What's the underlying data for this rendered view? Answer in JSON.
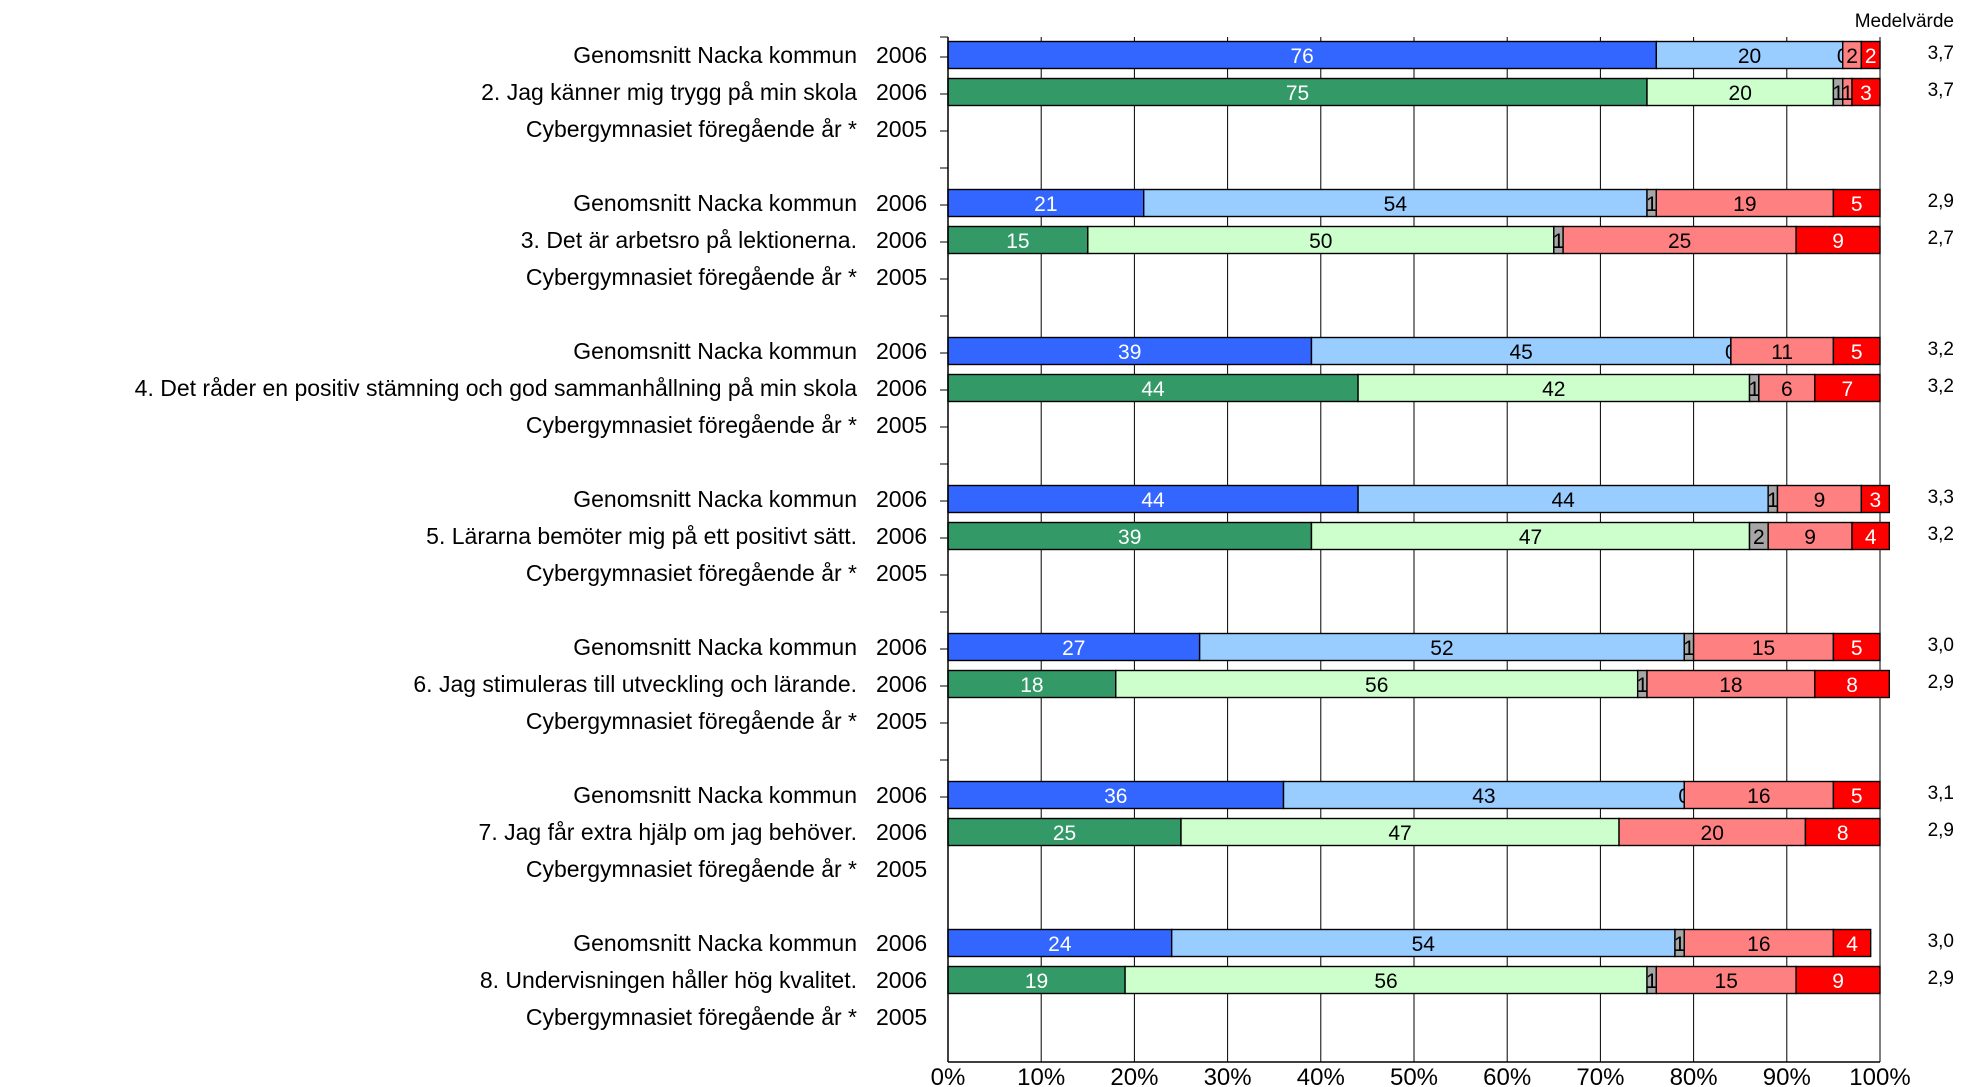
{
  "chart_data": {
    "type": "bar",
    "orientation": "horizontal",
    "stacked": true,
    "mean_header": "Medelvärde",
    "xlim": [
      0,
      100
    ],
    "x_ticks": [
      "0%",
      "10%",
      "20%",
      "30%",
      "40%",
      "50%",
      "60%",
      "70%",
      "80%",
      "90%",
      "100%"
    ],
    "grid": true,
    "colors": {
      "kommun": [
        "#3366ff",
        "#99ccff",
        "#a6a6a6",
        "#ff8080",
        "#ff0000"
      ],
      "school": [
        "#339966",
        "#ccffcc",
        "#a6a6a6",
        "#ff8080",
        "#ff0000"
      ]
    },
    "groups": [
      {
        "rows": [
          {
            "label": "Genomsnitt Nacka kommun",
            "year": "2006",
            "kind": "kommun",
            "values": [
              76,
              20,
              0,
              2,
              2
            ],
            "labels": [
              "76",
              "20",
              "0",
              "2",
              "2"
            ],
            "mean": "3,7"
          },
          {
            "label": "2.  Jag känner mig trygg på min skola",
            "year": "2006",
            "kind": "school",
            "values": [
              75,
              20,
              1,
              1,
              3
            ],
            "labels": [
              "75",
              "20",
              "1",
              "1",
              "3"
            ],
            "mean": "3,7"
          },
          {
            "label": "Cybergymnasiet föregående år *",
            "year": "2005",
            "kind": "school",
            "values": [],
            "labels": [],
            "mean": ""
          }
        ]
      },
      {
        "rows": [
          {
            "label": "Genomsnitt Nacka kommun",
            "year": "2006",
            "kind": "kommun",
            "values": [
              21,
              54,
              1,
              19,
              5
            ],
            "labels": [
              "21",
              "54",
              "1",
              "19",
              "5"
            ],
            "mean": "2,9"
          },
          {
            "label": "3.  Det är arbetsro på lektionerna.",
            "year": "2006",
            "kind": "school",
            "values": [
              15,
              50,
              1,
              25,
              9
            ],
            "labels": [
              "15",
              "50",
              "1",
              "25",
              "9"
            ],
            "mean": "2,7"
          },
          {
            "label": "Cybergymnasiet föregående år *",
            "year": "2005",
            "kind": "school",
            "values": [],
            "labels": [],
            "mean": ""
          }
        ]
      },
      {
        "rows": [
          {
            "label": "Genomsnitt Nacka kommun",
            "year": "2006",
            "kind": "kommun",
            "values": [
              39,
              45,
              0,
              11,
              5
            ],
            "labels": [
              "39",
              "45",
              "0",
              "11",
              "5"
            ],
            "mean": "3,2"
          },
          {
            "label": "4.  Det råder en positiv stämning och god sammanhållning på min skola",
            "year": "2006",
            "kind": "school",
            "values": [
              44,
              42,
              1,
              6,
              7
            ],
            "labels": [
              "44",
              "42",
              "1",
              "6",
              "7"
            ],
            "mean": "3,2"
          },
          {
            "label": "Cybergymnasiet föregående år *",
            "year": "2005",
            "kind": "school",
            "values": [],
            "labels": [],
            "mean": ""
          }
        ]
      },
      {
        "rows": [
          {
            "label": "Genomsnitt Nacka kommun",
            "year": "2006",
            "kind": "kommun",
            "values": [
              44,
              44,
              1,
              9,
              3
            ],
            "labels": [
              "44",
              "44",
              "1",
              "9",
              "3"
            ],
            "mean": "3,3"
          },
          {
            "label": "5.  Lärarna bemöter mig på ett positivt sätt.",
            "year": "2006",
            "kind": "school",
            "values": [
              39,
              47,
              2,
              9,
              4
            ],
            "labels": [
              "39",
              "47",
              "2",
              "9",
              "4"
            ],
            "mean": "3,2"
          },
          {
            "label": "Cybergymnasiet föregående år *",
            "year": "2005",
            "kind": "school",
            "values": [],
            "labels": [],
            "mean": ""
          }
        ]
      },
      {
        "rows": [
          {
            "label": "Genomsnitt Nacka kommun",
            "year": "2006",
            "kind": "kommun",
            "values": [
              27,
              52,
              1,
              15,
              5
            ],
            "labels": [
              "27",
              "52",
              "1",
              "15",
              "5"
            ],
            "mean": "3,0"
          },
          {
            "label": "6.  Jag stimuleras till utveckling och lärande.",
            "year": "2006",
            "kind": "school",
            "values": [
              18,
              56,
              1,
              18,
              8
            ],
            "labels": [
              "18",
              "56",
              "1",
              "18",
              "8"
            ],
            "mean": "2,9"
          },
          {
            "label": "Cybergymnasiet föregående år *",
            "year": "2005",
            "kind": "school",
            "values": [],
            "labels": [],
            "mean": ""
          }
        ]
      },
      {
        "rows": [
          {
            "label": "Genomsnitt Nacka kommun",
            "year": "2006",
            "kind": "kommun",
            "values": [
              36,
              43,
              0,
              16,
              5
            ],
            "labels": [
              "36",
              "43",
              "0",
              "16",
              "5"
            ],
            "mean": "3,1"
          },
          {
            "label": "7.  Jag får extra hjälp om jag behöver.",
            "year": "2006",
            "kind": "school",
            "values": [
              25,
              47,
              0,
              20,
              8
            ],
            "labels": [
              "25",
              "47",
              "",
              "20",
              "8"
            ],
            "mean": "2,9"
          },
          {
            "label": "Cybergymnasiet föregående år *",
            "year": "2005",
            "kind": "school",
            "values": [],
            "labels": [],
            "mean": ""
          }
        ]
      },
      {
        "rows": [
          {
            "label": "Genomsnitt Nacka kommun",
            "year": "2006",
            "kind": "kommun",
            "values": [
              24,
              54,
              1,
              16,
              4
            ],
            "labels": [
              "24",
              "54",
              "1",
              "16",
              "4"
            ],
            "mean": "3,0"
          },
          {
            "label": "8.  Undervisningen håller hög kvalitet.",
            "year": "2006",
            "kind": "school",
            "values": [
              19,
              56,
              1,
              15,
              9
            ],
            "labels": [
              "19",
              "56",
              "1",
              "15",
              "9"
            ],
            "mean": "2,9"
          },
          {
            "label": "Cybergymnasiet föregående år *",
            "year": "2005",
            "kind": "school",
            "values": [],
            "labels": [],
            "mean": ""
          }
        ]
      }
    ]
  }
}
